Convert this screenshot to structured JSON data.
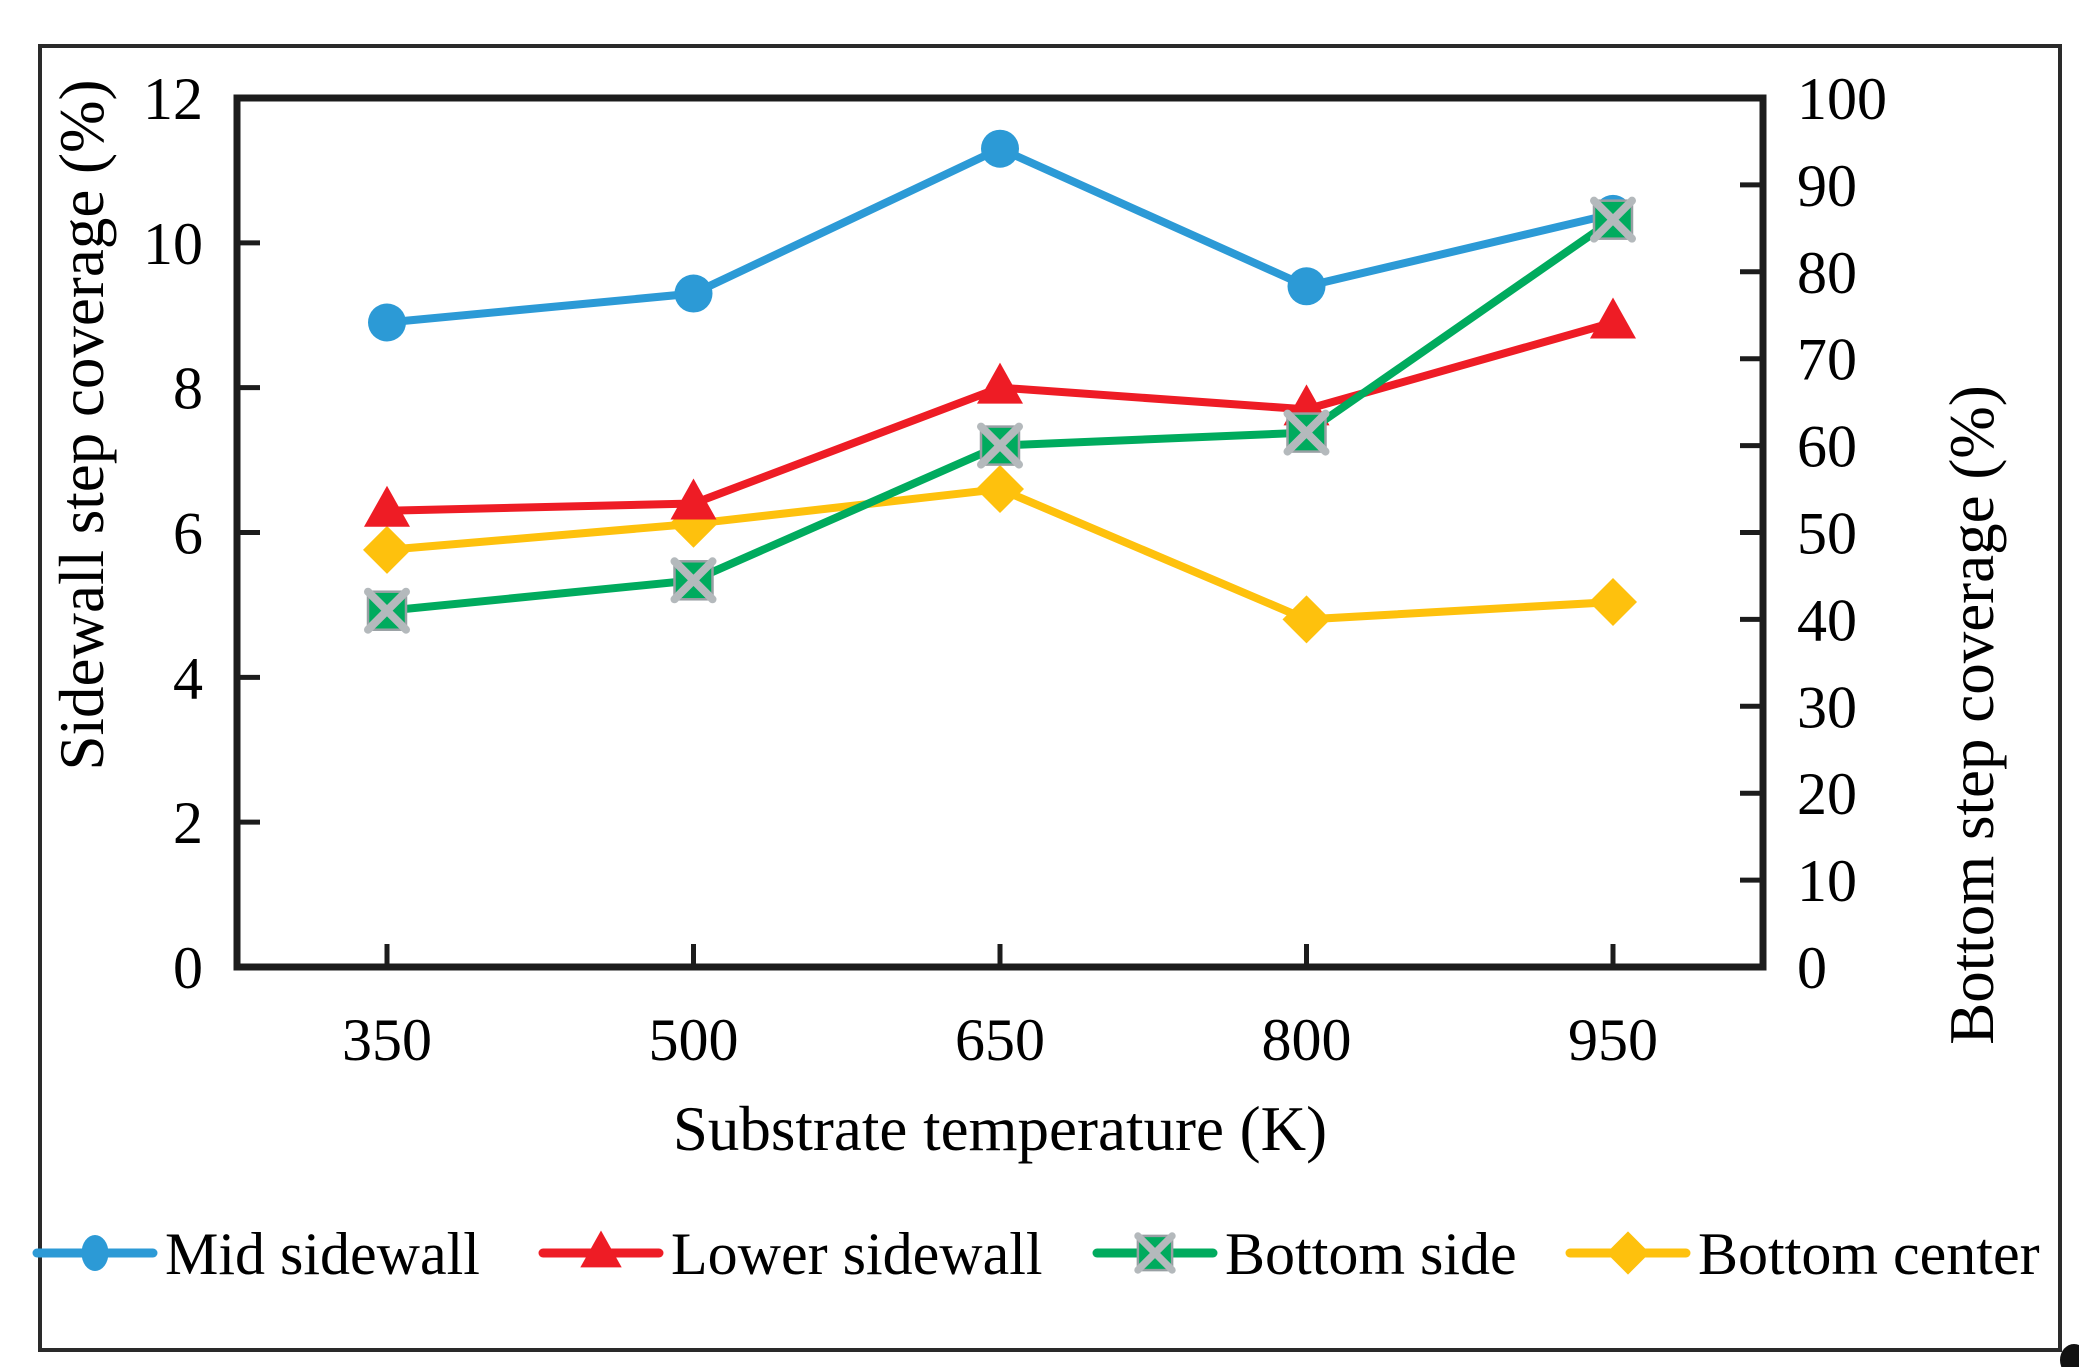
{
  "figure": {
    "border_color": "#2a2a2a",
    "background": "#ffffff",
    "axis_color": "#1c1c1c"
  },
  "chart_data": {
    "type": "line",
    "x": [
      350,
      500,
      650,
      800,
      950
    ],
    "xlabel": "Substrate temperature (K)",
    "left_axis": {
      "label": "Sidewall step coverage (%)",
      "min": 0,
      "max": 12,
      "step": 2
    },
    "right_axis": {
      "label": "Bottom step coverage (%)",
      "min": 0,
      "max": 100,
      "step": 10
    },
    "grid": false,
    "legend_position": "bottom",
    "series": [
      {
        "name": "Mid sidewall",
        "axis": "left",
        "marker": "circle",
        "color": "#2c9ad6",
        "values": [
          8.9,
          9.3,
          11.3,
          9.4,
          10.4
        ]
      },
      {
        "name": "Lower sidewall",
        "axis": "left",
        "marker": "triangle",
        "color": "#ee1c25",
        "values": [
          6.3,
          6.4,
          8.0,
          7.7,
          8.9
        ]
      },
      {
        "name": "Bottom side",
        "axis": "right",
        "marker": "square-x",
        "color": "#00ab5e",
        "marker_cross_color": "#b4b9bc",
        "values": [
          41,
          44.5,
          60,
          61.5,
          86
        ]
      },
      {
        "name": "Bottom center",
        "axis": "right",
        "marker": "diamond",
        "color": "#fec10d",
        "values": [
          48,
          51,
          55,
          40,
          42
        ]
      }
    ]
  }
}
